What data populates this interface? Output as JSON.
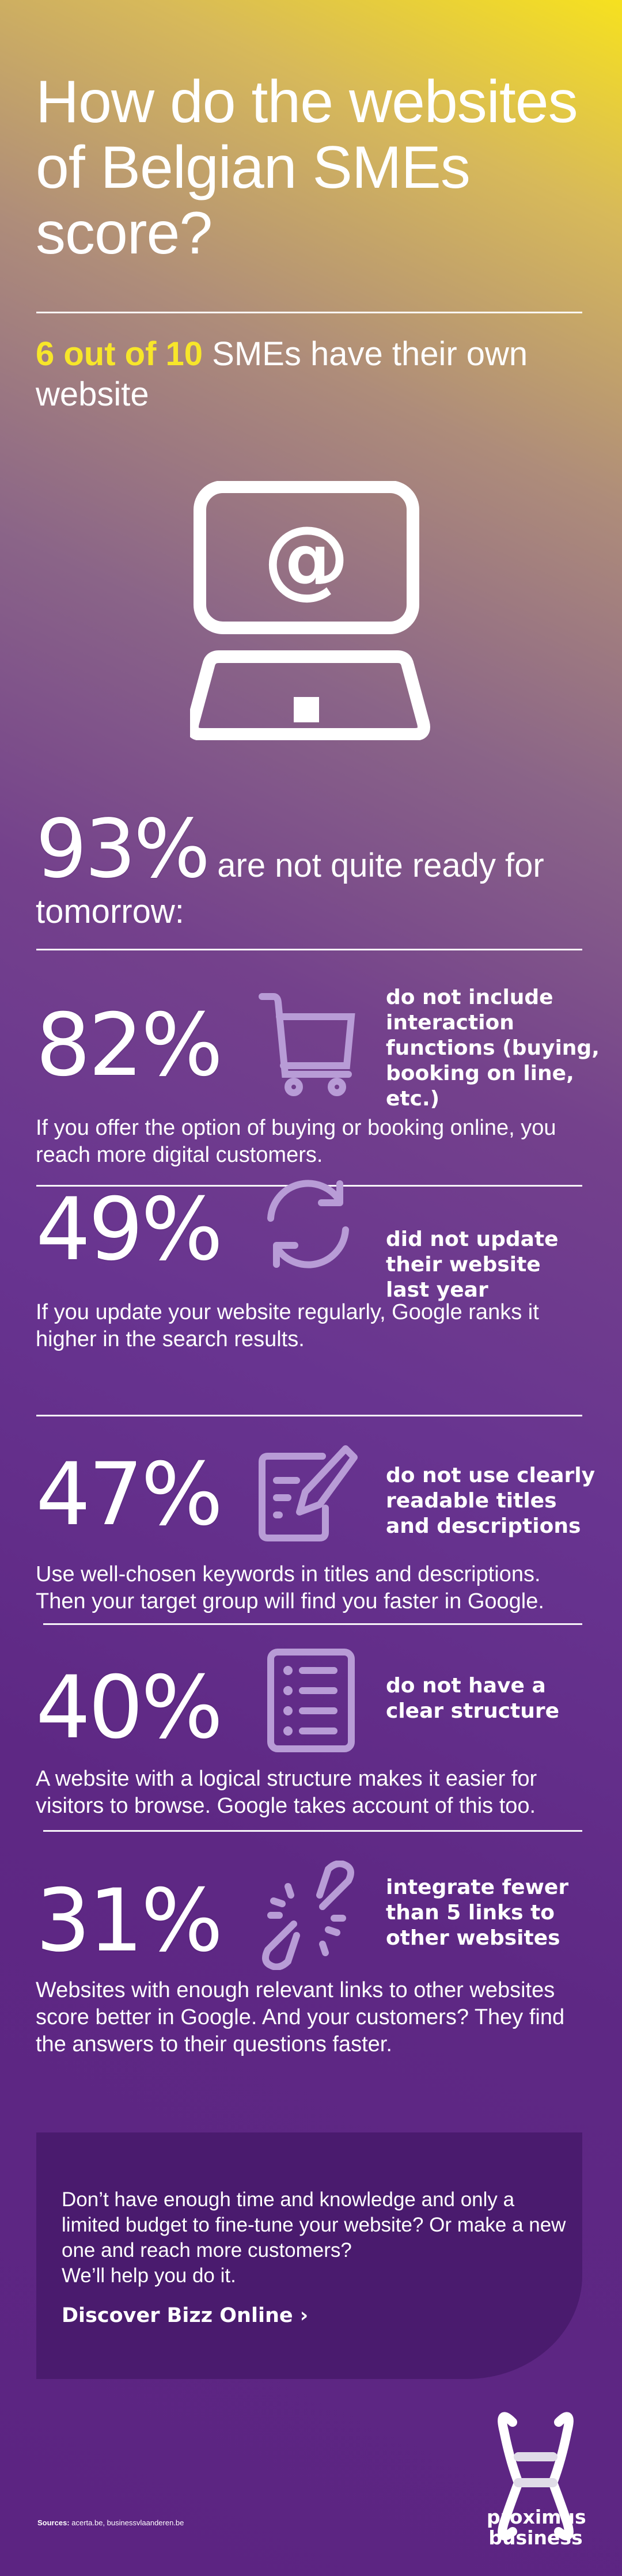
{
  "header": {
    "title": "How do the websites of Belgian SMEs score?"
  },
  "intro": {
    "highlight": "6 out of 10",
    "rest": " SMEs have their own website"
  },
  "summary": {
    "percent": "93%",
    "text": " are not quite ready for tomorrow:"
  },
  "stats": [
    {
      "percent": "82%",
      "icon": "shopping-cart-icon",
      "description": "do not include interaction functions (buying, booking on line, etc.)",
      "body": "If you offer the option of buying or booking online, you reach more digital customers."
    },
    {
      "percent": "49%",
      "icon": "refresh-icon",
      "description": "did not update their website last year",
      "body": "If you update your website regularly, Google ranks it higher in the search results."
    },
    {
      "percent": "47%",
      "icon": "edit-document-icon",
      "description": "do not use clearly readable titles and descriptions",
      "body": "Use well-chosen keywords in titles and descriptions. Then your target group will find you faster in Google."
    },
    {
      "percent": "40%",
      "icon": "list-document-icon",
      "description": "do not have a clear structure",
      "body": "A website with a logical structure makes it easier for visitors to browse. Google takes account of this too."
    },
    {
      "percent": "31%",
      "icon": "broken-link-icon",
      "description": "integrate fewer than 5 links to other websites",
      "body": "Websites with enough relevant links to other websites score better in Google. And your customers? They find the answers to their questions faster."
    }
  ],
  "cta": {
    "text_lines": [
      "Don’t have enough time and knowledge and only a limited budget to fine-tune your website? Or make a new one and reach more customers?",
      "We’ll help you do it."
    ],
    "link_label": "Discover Bizz Online",
    "link_icon": "chevron-right-icon"
  },
  "footer": {
    "sources_label": "Sources:",
    "sources": " acerta.be, businessvlaanderen.be",
    "logo_text": "proximus business"
  },
  "colors": {
    "accent": "#f7e62a",
    "icon": "#b89cd6",
    "cta_bg": "#4a1b6e",
    "bottom_bg": "#5c2482"
  }
}
